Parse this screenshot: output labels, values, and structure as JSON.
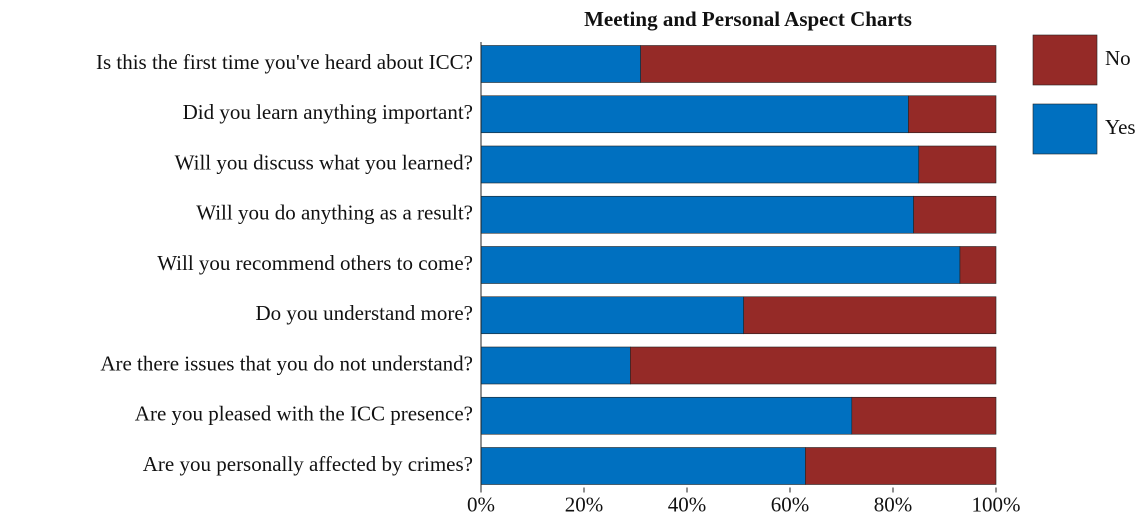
{
  "chart_data": {
    "type": "stacked_barh",
    "title": "Meeting and Personal Aspect Charts",
    "categories": [
      "Is this the first time you've heard about ICC?",
      "Did you learn anything important?",
      "Will you discuss what you learned?",
      "Will you do anything as a result?",
      "Will you recommend others to come?",
      "Do you understand more?",
      "Are there issues that you do not understand?",
      "Are you pleased with the ICC presence?",
      "Are you personally affected by crimes?"
    ],
    "series": [
      {
        "name": "Yes",
        "color": "#0070c0",
        "values": [
          31,
          83,
          85,
          84,
          93,
          51,
          29,
          72,
          63
        ]
      },
      {
        "name": "No",
        "color": "#952a27",
        "values": [
          69,
          17,
          15,
          16,
          7,
          49,
          71,
          28,
          37
        ]
      }
    ],
    "xlim": [
      0,
      100
    ],
    "xticks": [
      {
        "value": 0,
        "label": "0%"
      },
      {
        "value": 20,
        "label": "20%"
      },
      {
        "value": 40,
        "label": "40%"
      },
      {
        "value": 60,
        "label": "60%"
      },
      {
        "value": 80,
        "label": "80%"
      },
      {
        "value": 100,
        "label": "100%"
      }
    ],
    "legend": "right"
  }
}
